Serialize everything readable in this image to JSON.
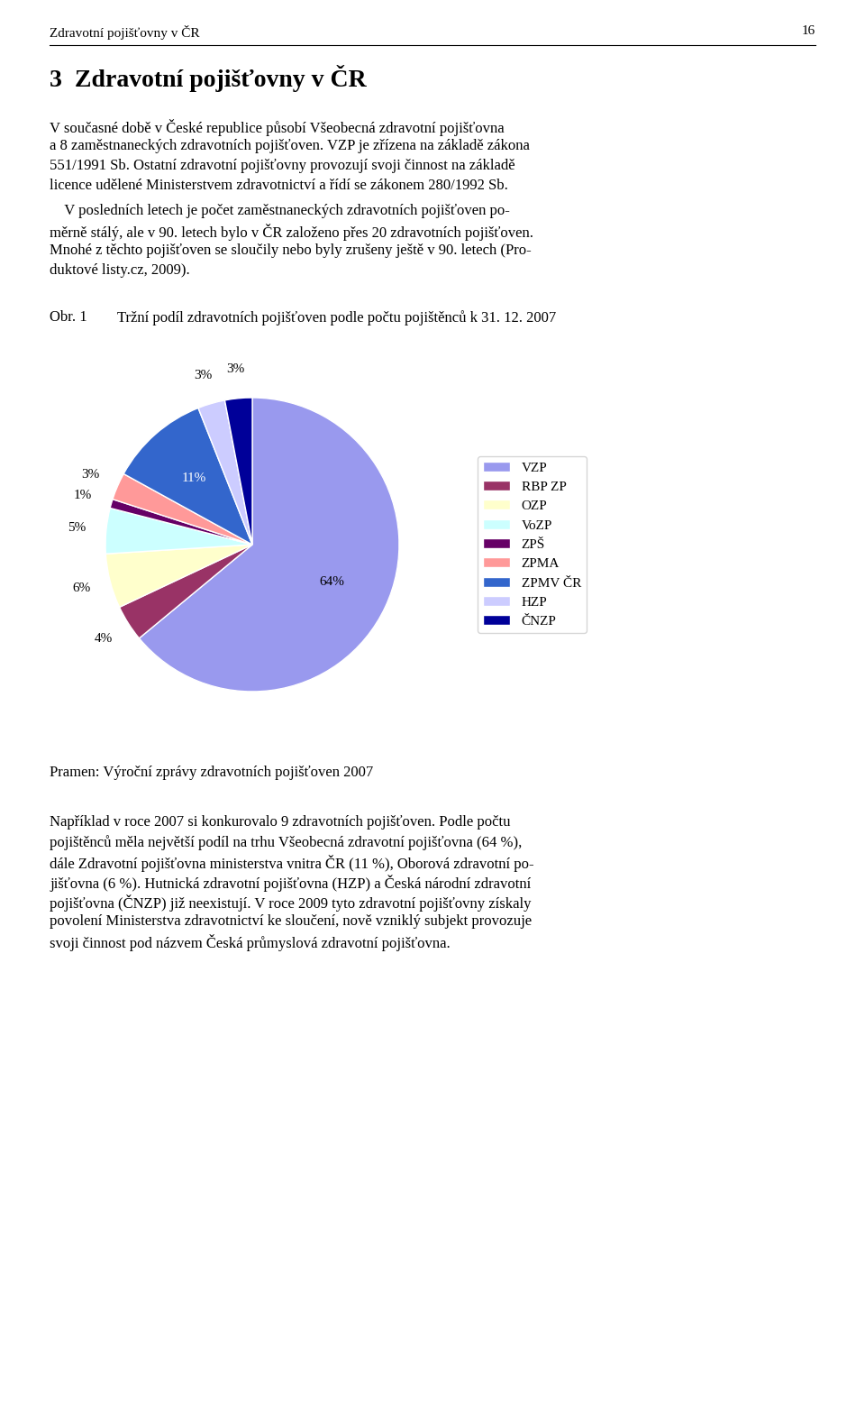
{
  "chart_data": {
    "type": "pie",
    "title": "Tržní podíl zdravotních pojišťoven podle počtu pojištěnců k 31. 12. 2007",
    "annotations": {
      "header": "Zdravotní pojišťovny v ČR",
      "page": "16",
      "heading": "3  Zdravotní pojišťovny v ČR",
      "figure_label": "Obr. 1",
      "paragraphs_before": [
        [
          "V současné době v České republice působí Všeobecná zdravotní pojišťovna",
          "a 8 zaměstnaneckých zdravotních pojišťoven. VZP je zřízena na základě zákona",
          "551/1991 Sb. Ostatní zdravotní pojišťovny provozují svoji činnost na základě",
          "licence udělené Ministerstvem zdravotnictví a řídí se zákonem 280/1992 Sb."
        ],
        [
          "    V posledních letech je počet zaměstnaneckých zdravotních pojišťoven po-",
          "měrně stálý, ale v 90. letech bylo v ČR založeno přes 20 zdravotních pojišťoven.",
          "Mnohé z těchto pojišťoven se sloučily nebo byly zrušeny ještě v 90. letech (Pro-",
          "duktové listy.cz, 2009)."
        ]
      ],
      "source": "Pramen: Výroční zprávy zdravotních pojišťoven 2007",
      "paragraphs_after": [
        [
          "Například v roce 2007 si konkurovalo 9 zdravotních pojišťoven. Podle počtu",
          "pojištěnců měla největší podíl na trhu Všeobecná zdravotní pojišťovna (64 %),",
          "dále Zdravotní pojišťovna ministerstva vnitra ČR (11 %), Oborová zdravotní po-",
          "jišťovna (6 %). Hutnická zdravotní pojišťovna (HZP) a Česká národní zdravotní",
          "pojišťovna (ČNZP) již neexistují. V roce 2009 tyto zdravotní pojišťovny získaly",
          "povolení Ministerstva zdravotnictví ke sloučení, nově vzniklý subjekt provozuje",
          "svoji činnost pod názvem Česká průmyslová zdravotní pojišťovna."
        ]
      ]
    },
    "categories": [
      "VZP",
      "RBP ZP",
      "OZP",
      "VoZP",
      "ZPŠ",
      "ZPMA",
      "ZPMV ČR",
      "HZP",
      "ČNZP"
    ],
    "values": [
      64,
      4,
      6,
      5,
      1,
      3,
      11,
      3,
      3
    ],
    "value_labels": [
      "64%",
      "4%",
      "6%",
      "5%",
      "1%",
      "3%",
      "11%",
      "3%",
      "3%"
    ],
    "colors": [
      "#9999ee",
      "#993366",
      "#ffffcc",
      "#ccffff",
      "#660066",
      "#ff9999",
      "#3366cc",
      "#ccccff",
      "#000099"
    ],
    "data_labels": true,
    "legend": "center left"
  }
}
